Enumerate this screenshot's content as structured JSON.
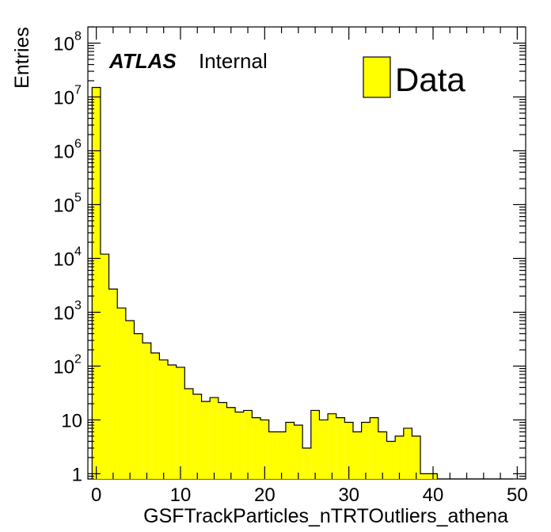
{
  "chart_data": {
    "type": "bar",
    "style": "histogram",
    "xlabel": "GSFTrackParticles_nTRTOutliers_athena",
    "ylabel": "Entries",
    "xlim": [
      -1,
      51
    ],
    "ylim": [
      0.8,
      200000000
    ],
    "yscale": "log",
    "bin_width": 1,
    "x": [
      0,
      1,
      2,
      3,
      4,
      5,
      6,
      7,
      8,
      9,
      10,
      11,
      12,
      13,
      14,
      15,
      16,
      17,
      18,
      19,
      20,
      21,
      22,
      23,
      24,
      25,
      26,
      27,
      28,
      29,
      30,
      31,
      32,
      33,
      34,
      35,
      36,
      37,
      38,
      39,
      40,
      41,
      42,
      43,
      44,
      45,
      46,
      47,
      48,
      49
    ],
    "series": [
      {
        "name": "Data",
        "values": [
          15000000,
          12000,
          2700,
          1200,
          700,
          400,
          270,
          175,
          130,
          105,
          95,
          38,
          30,
          22,
          26,
          21,
          17,
          14,
          15,
          11,
          10,
          6,
          6,
          9,
          8,
          3,
          15,
          10,
          13,
          11,
          9,
          6,
          9,
          11,
          6,
          4,
          5,
          7,
          5,
          1,
          1,
          0,
          0,
          0,
          0,
          0,
          0,
          0,
          0,
          0
        ],
        "color": "#ffff00"
      }
    ],
    "xticks": [
      "0",
      "10",
      "20",
      "30",
      "40",
      "50"
    ],
    "yticks": [
      "1",
      "10",
      "10",
      "10",
      "10",
      "10",
      "10",
      "10",
      "10"
    ],
    "yticks_exp": [
      "",
      "",
      "2",
      "3",
      "4",
      "5",
      "6",
      "7",
      "8"
    ],
    "legend": {
      "position": "top-right",
      "entries": [
        "Data"
      ]
    },
    "annotation": {
      "bold": "ATLAS",
      "normal": "Internal"
    },
    "grid": false
  }
}
